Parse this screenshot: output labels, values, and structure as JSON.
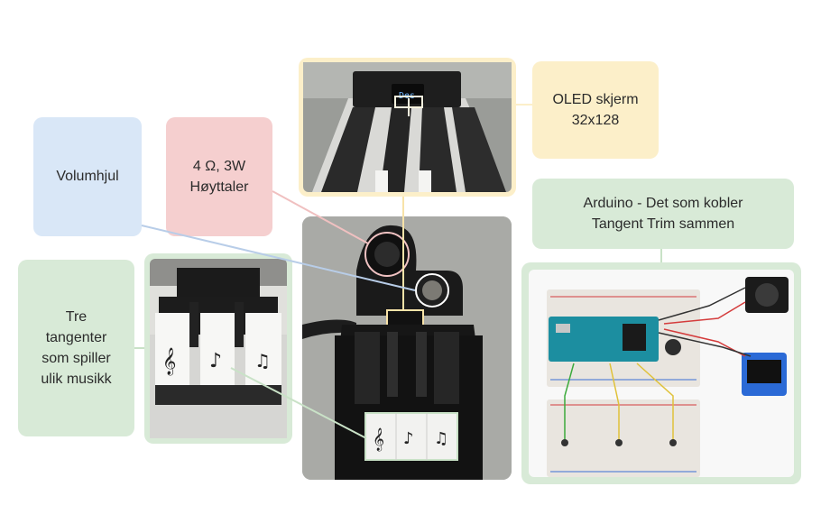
{
  "labels": {
    "oled": {
      "line1": "OLED skjerm",
      "line2": "32x128",
      "bg": "#fcefc9"
    },
    "speaker": {
      "line1": "4 Ω, 3W",
      "line2": "Høyttaler",
      "bg": "#f5cfcf"
    },
    "volume": {
      "text": "Volumhjul",
      "bg": "#d9e7f7"
    },
    "keys": {
      "line1": "Tre",
      "line2": "tangenter",
      "line3": "som spiller",
      "line4": "ulik musikk",
      "bg": "#d8ead7"
    },
    "arduino": {
      "line1": "Arduino - Det som kobler",
      "line2": "Tangent Trim sammen",
      "bg": "#d8ead7"
    }
  },
  "oled_screen_text": "Des",
  "colors": {
    "green_frame": "#d8ead7",
    "yellow_frame": "#fcefc9",
    "pink_line": "#f0c0c0",
    "blue_line": "#b8cde8",
    "green_line": "#c9e2c7",
    "arduino_board": "#1c8ea0",
    "breadboard": "#e9e5df"
  }
}
